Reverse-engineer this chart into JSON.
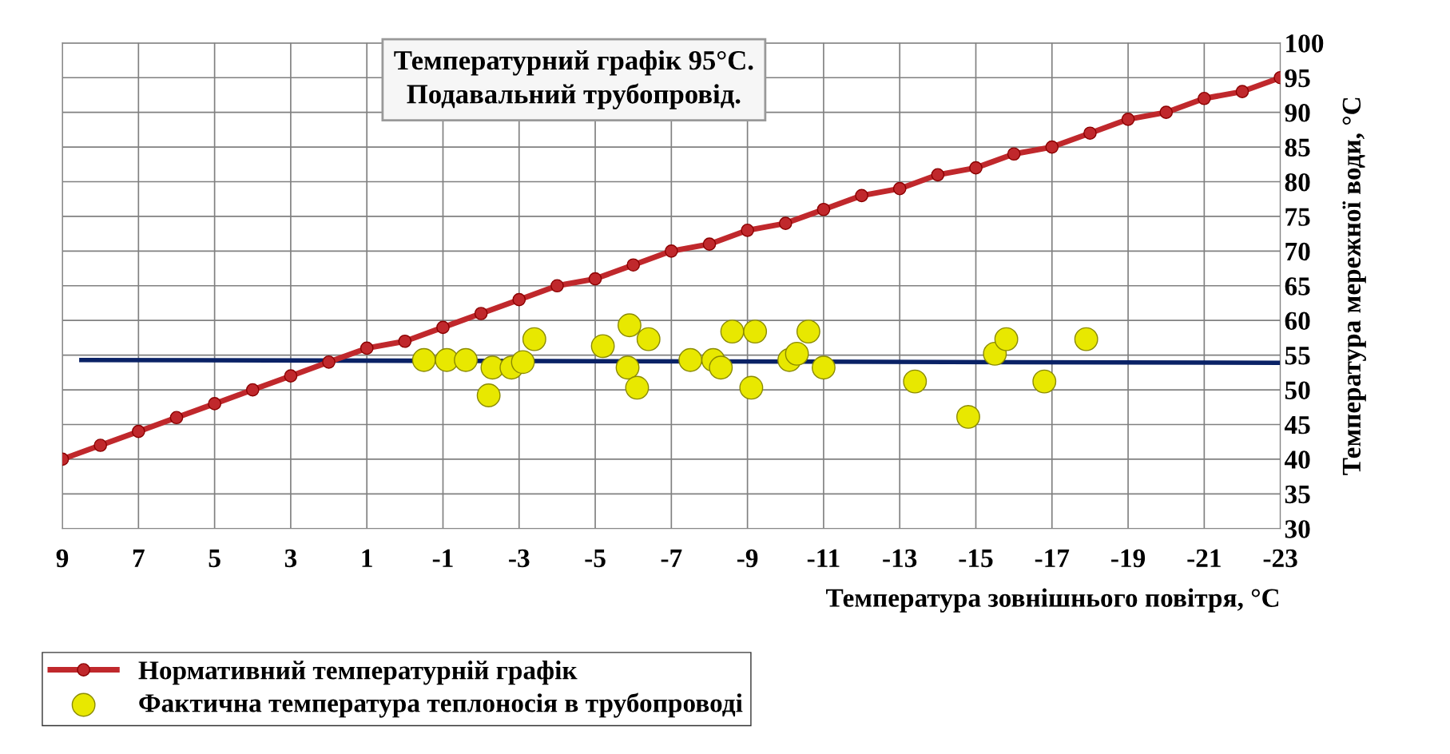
{
  "chart_data": {
    "type": "line",
    "title": "Температурний графік 95°C.\nПодавальний трубопровід.",
    "xlabel": "Температура зовнішнього повітря, °C",
    "ylabel": "Температура мережної води, °C",
    "x": [
      9,
      8,
      7,
      6,
      5,
      4,
      3,
      2,
      1,
      0,
      -1,
      -2,
      -3,
      -4,
      -5,
      -6,
      -7,
      -8,
      -9,
      -10,
      -11,
      -12,
      -13,
      -14,
      -15,
      -16,
      -17,
      -18,
      -19,
      -20,
      -21,
      -22,
      -23
    ],
    "series": [
      {
        "name": "Нормативний температурній графік",
        "color": "#c0282c",
        "marker": "circle",
        "values": [
          40,
          42,
          44,
          46,
          48,
          50,
          52,
          54,
          56,
          57,
          59,
          61,
          63,
          65,
          66,
          68,
          70,
          71,
          73,
          74,
          76,
          78,
          79,
          81,
          82,
          84,
          85,
          87,
          89,
          90,
          92,
          93,
          95
        ]
      },
      {
        "name": "Фактична температура теплоносія в трубопроводі",
        "type": "scatter",
        "color": "#e8e800",
        "marker": "circle",
        "x": [
          -0.5,
          -1.1,
          -1.6,
          -2.2,
          -2.3,
          -2.8,
          -3.1,
          -3.4,
          -5.2,
          -5.9,
          -5.85,
          -6.1,
          -6.4,
          -7.5,
          -8.1,
          -8.3,
          -8.6,
          -9.1,
          -9.2,
          -10.1,
          -10.3,
          -10.6,
          -11.0,
          -13.4,
          -14.8,
          -15.5,
          -15.8,
          -16.8,
          -17.9
        ],
        "values": [
          54.3,
          54.3,
          54.3,
          49.2,
          53.2,
          53.2,
          54,
          57.3,
          56.3,
          59.3,
          53.2,
          50.3,
          57.3,
          54.3,
          54.3,
          53.2,
          58.4,
          50.3,
          58.4,
          54.3,
          55.2,
          58.4,
          53.2,
          51.2,
          46.1,
          55.2,
          57.3,
          51.2,
          57.3
        ]
      },
      {
        "color": "#0a2266",
        "marker": "none",
        "x": [
          8.5,
          -23
        ],
        "values": [
          54.3,
          53.9
        ]
      }
    ],
    "xlim": [
      9,
      -23
    ],
    "xticks": [
      9,
      7,
      5,
      3,
      1,
      -1,
      -3,
      -5,
      -7,
      -9,
      -11,
      -13,
      -15,
      -17,
      -19,
      -21,
      -23
    ],
    "ylim": [
      30,
      100
    ],
    "yticks": [
      30,
      35,
      40,
      45,
      50,
      55,
      60,
      65,
      70,
      75,
      80,
      85,
      90,
      95,
      100
    ],
    "grid": true,
    "legend": "bottom left"
  }
}
